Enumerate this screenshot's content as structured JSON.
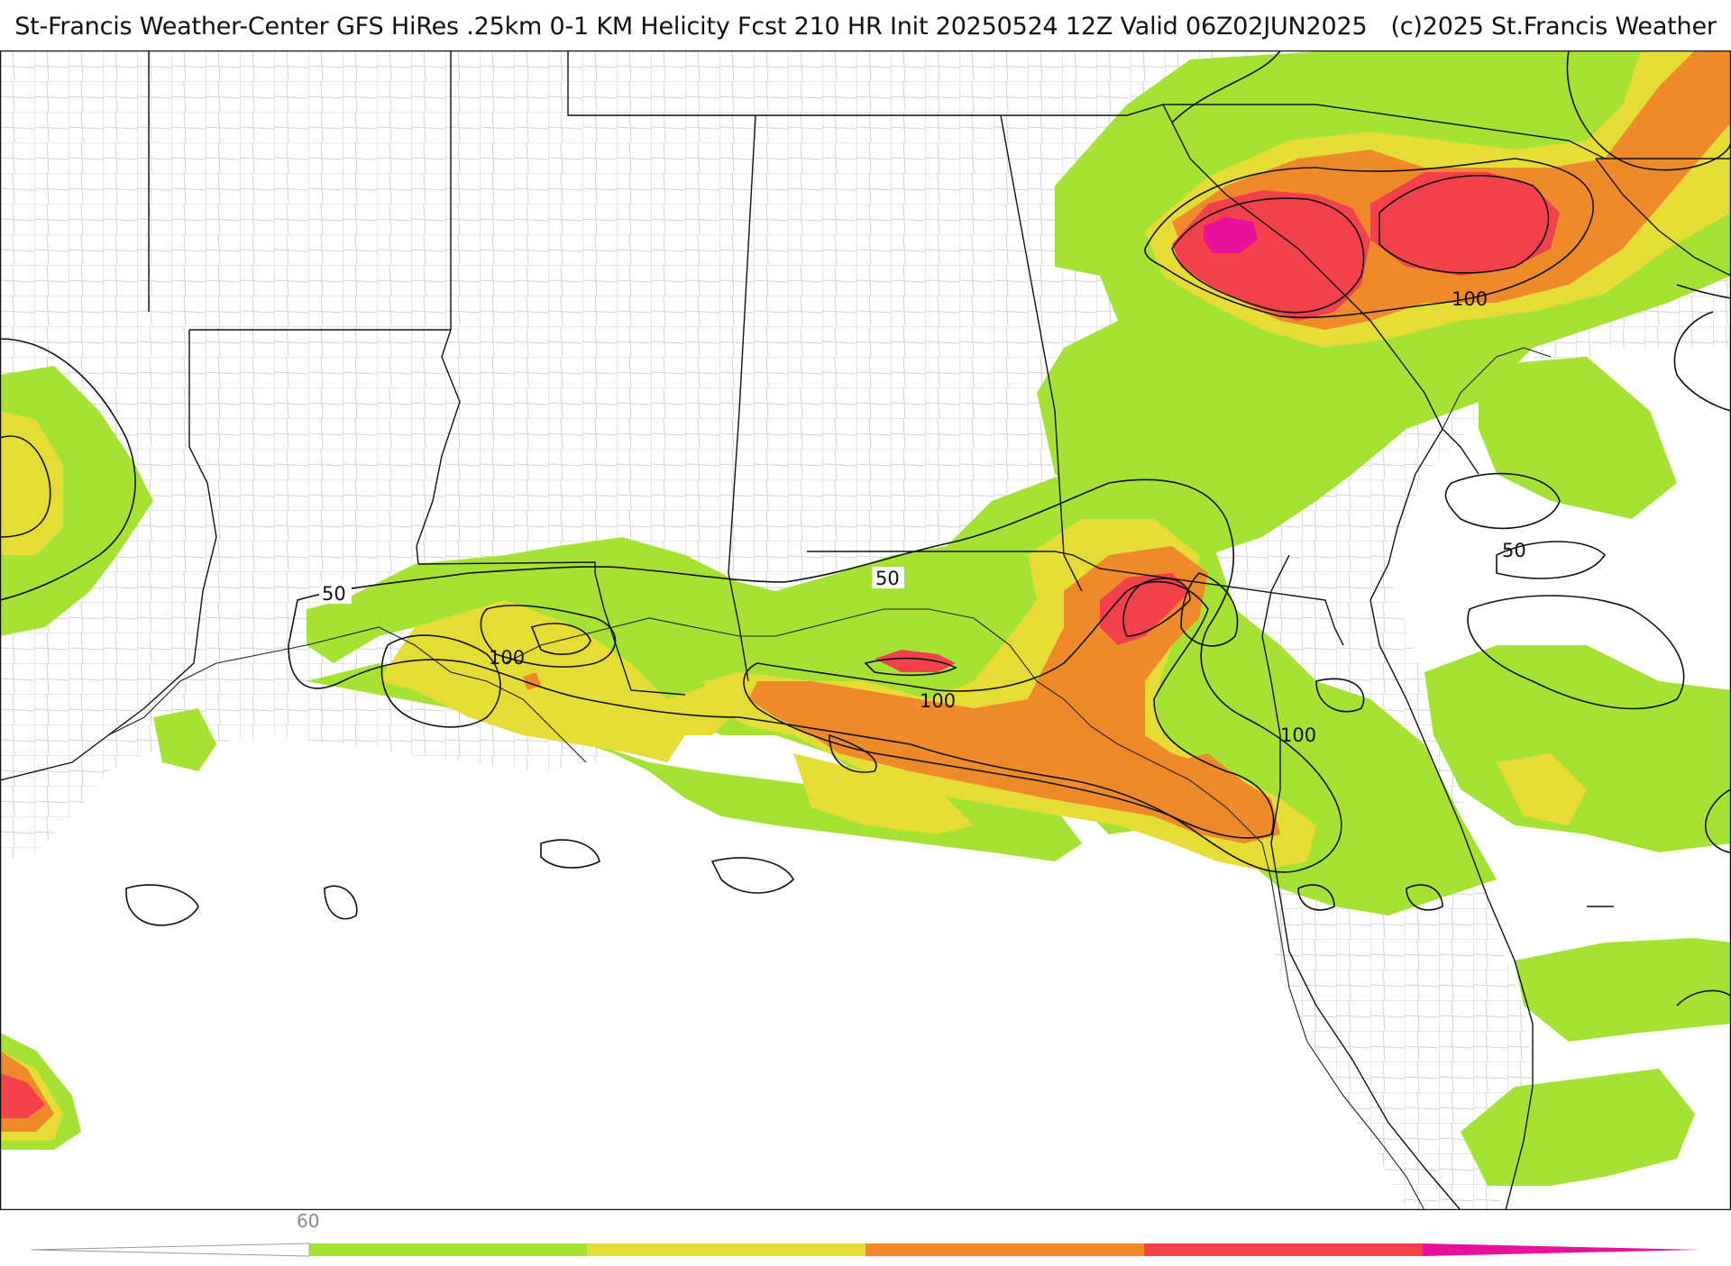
{
  "header": {
    "title": "St-Francis Weather-Center GFS HiRes .25km 0-1 KM Helicity Fcst 210 HR Init 20250524 12Z  Valid 06Z02JUN2025",
    "copyright": "(c)2025 St.Francis Weather"
  },
  "colors": {
    "band_60_100": "#a6e234",
    "band_100_150": "#e5dd35",
    "band_150_200": "#ef8a2a",
    "band_200_250": "#f2414b",
    "band_250_plus": "#e8129a",
    "state_lines": "#111111",
    "county_lines": "#c8c8c8",
    "contours": "#111111"
  },
  "contour_labels": [
    "50",
    "100",
    "50",
    "100",
    "100",
    "100",
    "50"
  ],
  "colorbar": {
    "tick_label": "60",
    "segments": [
      {
        "name": "60-100",
        "color": "#a6e234"
      },
      {
        "name": "100-150",
        "color": "#e5dd35"
      },
      {
        "name": "150-200",
        "color": "#ef8a2a"
      },
      {
        "name": "200-250",
        "color": "#f2414b"
      },
      {
        "name": "250+",
        "color": "#e8129a"
      }
    ]
  }
}
